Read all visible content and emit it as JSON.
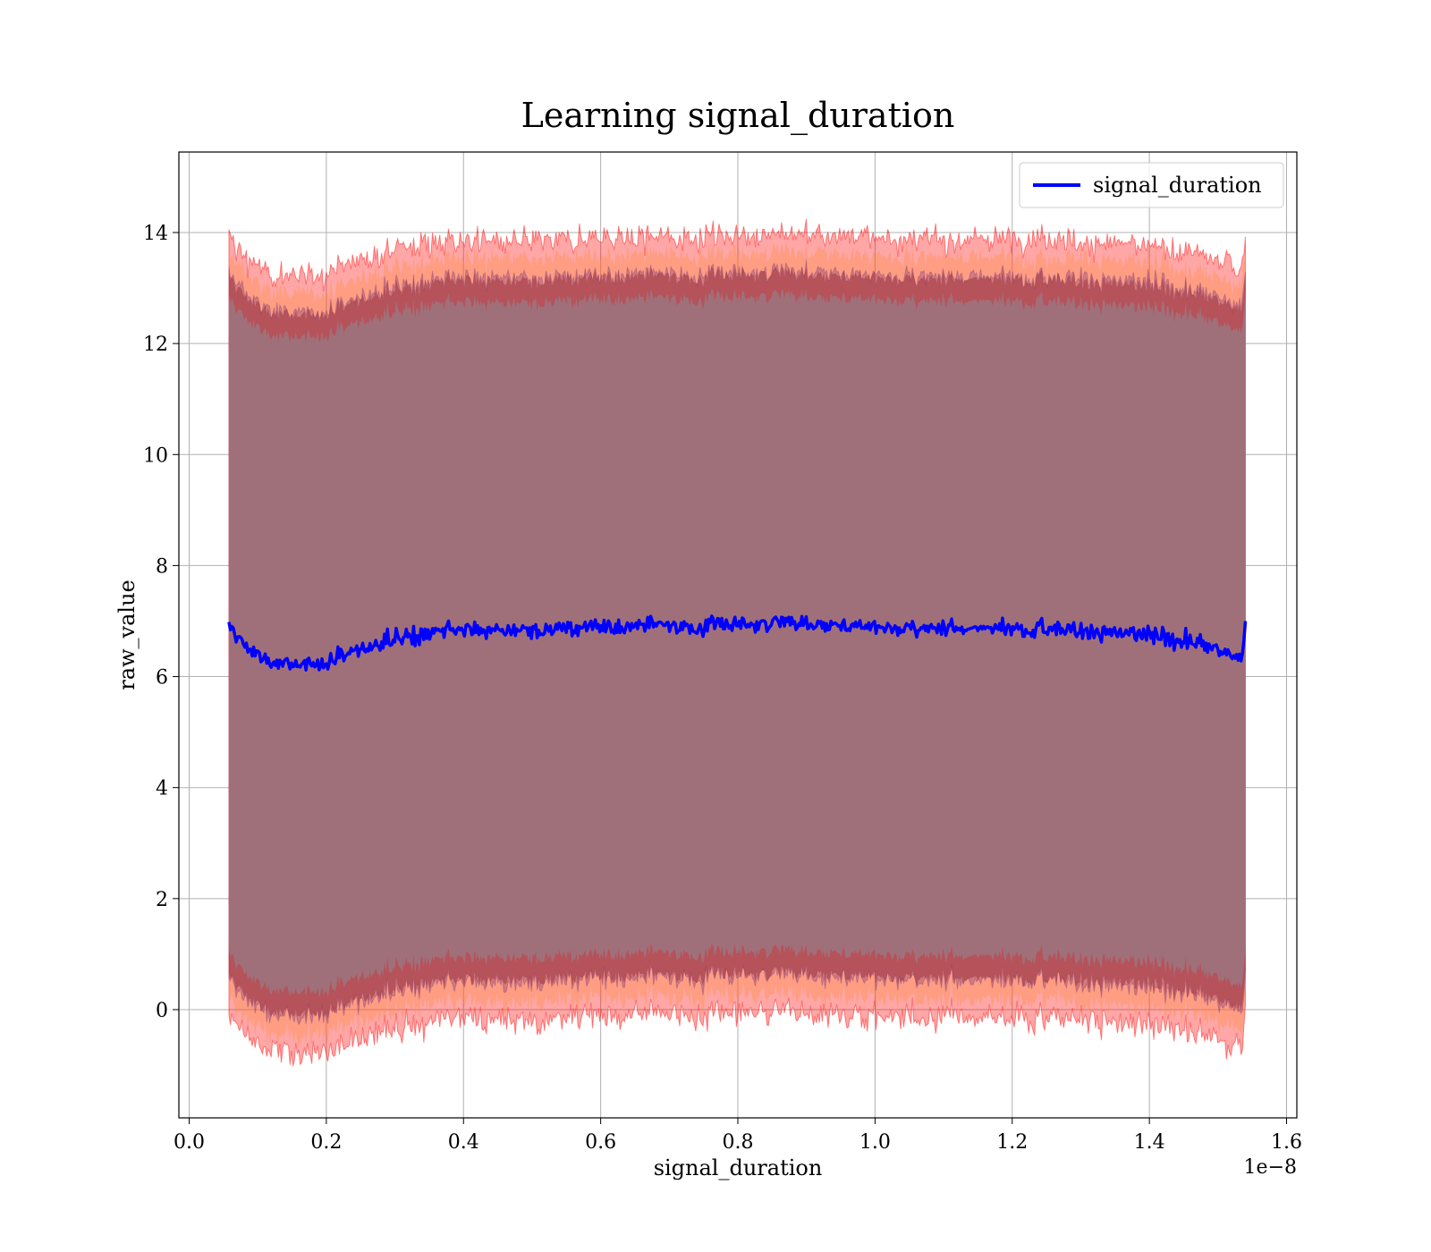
{
  "chart_data": {
    "type": "line",
    "title": "Learning signal_duration",
    "xlabel": "signal_duration",
    "ylabel": "raw_value",
    "x_offset_label": "1e−8",
    "xlim": [
      -0.015,
      1.615
    ],
    "ylim": [
      -1.95,
      15.45
    ],
    "x_range_data": [
      0.058,
      1.54
    ],
    "grid": true,
    "legend": {
      "position": "top-right",
      "entries": [
        "signal_duration"
      ]
    },
    "x_ticks": [
      {
        "value": 0.0,
        "label": "0.0"
      },
      {
        "value": 0.2,
        "label": "0.2"
      },
      {
        "value": 0.4,
        "label": "0.4"
      },
      {
        "value": 0.6,
        "label": "0.6"
      },
      {
        "value": 0.8,
        "label": "0.8"
      },
      {
        "value": 1.0,
        "label": "1.0"
      },
      {
        "value": 1.2,
        "label": "1.2"
      },
      {
        "value": 1.4,
        "label": "1.4"
      },
      {
        "value": 1.6,
        "label": "1.6"
      }
    ],
    "y_ticks": [
      {
        "value": 0,
        "label": "0"
      },
      {
        "value": 2,
        "label": "2"
      },
      {
        "value": 4,
        "label": "4"
      },
      {
        "value": 6,
        "label": "6"
      },
      {
        "value": 8,
        "label": "8"
      },
      {
        "value": 10,
        "label": "10"
      },
      {
        "value": 12,
        "label": "12"
      },
      {
        "value": 14,
        "label": "14"
      }
    ],
    "series": [
      {
        "name": "signal_duration",
        "color": "#0000ff",
        "x": [
          0.058,
          0.08,
          0.1,
          0.12,
          0.15,
          0.18,
          0.2,
          0.25,
          0.3,
          0.35,
          0.4,
          0.45,
          0.5,
          0.55,
          0.6,
          0.7,
          0.8,
          0.9,
          0.95,
          1.0,
          1.1,
          1.2,
          1.3,
          1.4,
          1.45,
          1.5,
          1.535,
          1.54
        ],
        "mean": [
          6.9,
          6.6,
          6.35,
          6.25,
          6.2,
          6.2,
          6.25,
          6.5,
          6.7,
          6.8,
          6.85,
          6.85,
          6.8,
          6.85,
          6.9,
          6.9,
          6.95,
          6.95,
          6.95,
          6.9,
          6.85,
          6.9,
          6.85,
          6.75,
          6.65,
          6.5,
          6.35,
          7.0
        ]
      }
    ],
    "bands": [
      {
        "name": "outer",
        "color": "#ff0000",
        "half_width": 7.0
      },
      {
        "name": "mid",
        "color": "#ff8040",
        "half_width": 6.7
      },
      {
        "name": "inner",
        "color": "#8b3a62",
        "half_width": 6.3
      }
    ],
    "colors": {
      "fill_main": "#a0707a",
      "line": "#0000ff",
      "band_outer": "#ff0000",
      "band_mid": "#ff8c40",
      "band_inner": "#7a3a7a"
    }
  }
}
